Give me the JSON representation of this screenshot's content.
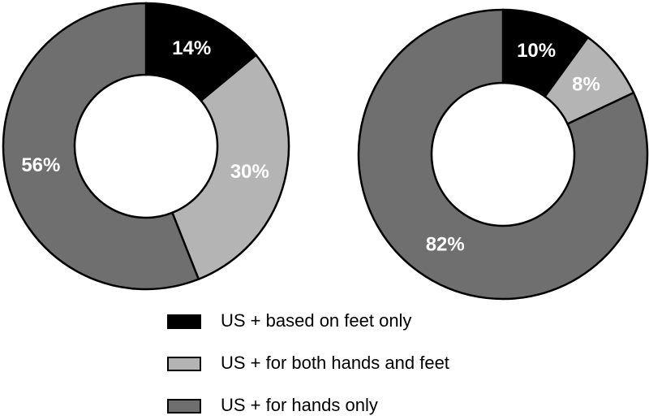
{
  "chart_data": [
    {
      "type": "pie",
      "categories": [
        "US + based on feet only",
        "US + for both hands and feet",
        "US + for hands only"
      ],
      "values": [
        14,
        30,
        56
      ],
      "value_labels": [
        "14%",
        "30%",
        "56%"
      ],
      "colors": [
        "#000000",
        "#b4b4b4",
        "#6f6f6f"
      ]
    },
    {
      "type": "pie",
      "categories": [
        "US + based on feet only",
        "US + for both hands and feet",
        "US + for hands only"
      ],
      "values": [
        10,
        8,
        82
      ],
      "value_labels": [
        "10%",
        "8%",
        "82%"
      ],
      "colors": [
        "#000000",
        "#b4b4b4",
        "#6f6f6f"
      ]
    }
  ]
}
